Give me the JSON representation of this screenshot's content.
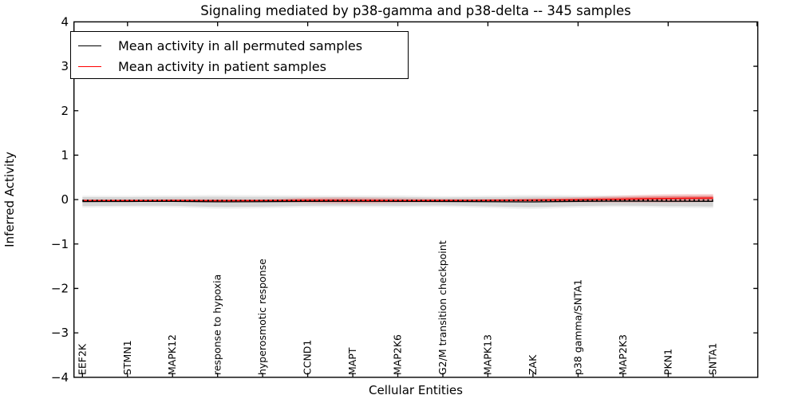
{
  "figure": {
    "background": "#ffffff"
  },
  "chart_data": {
    "type": "line",
    "title": "Signaling mediated by p38-gamma and p38-delta -- 345 samples",
    "xlabel": "Cellular Entities",
    "ylabel": "Inferred Activity",
    "ylim": [
      -4,
      4
    ],
    "ytick_values": [
      4,
      3,
      2,
      1,
      0,
      -1,
      -2,
      -3,
      -4
    ],
    "ytick_labels": [
      "4",
      "3",
      "2",
      "1",
      "0",
      "−1",
      "−2",
      "−3",
      "−4"
    ],
    "grid": false,
    "legend_position": "upper-left",
    "categories": [
      "EEF2K",
      "STMN1",
      "MAPK12",
      "response to hypoxia",
      "hyperosmotic response",
      "CCND1",
      "MAPT",
      "MAP2K6",
      "G2/M transition checkpoint",
      "MAPK13",
      "ZAK",
      "p38 gamma/SNTA1",
      "MAP2K3",
      "PKN1",
      "SNTA1"
    ],
    "series": [
      {
        "name": "Mean activity in all permuted samples",
        "color": "#000000",
        "line_style": "solid",
        "values": [
          -0.045,
          -0.042,
          -0.04,
          -0.05,
          -0.048,
          -0.04,
          -0.038,
          -0.04,
          -0.042,
          -0.048,
          -0.052,
          -0.04,
          -0.035,
          -0.038,
          -0.04
        ]
      },
      {
        "name": "Mean activity in patient samples",
        "color": "#ff0000",
        "line_style": "solid",
        "values": [
          -0.02,
          -0.022,
          -0.02,
          -0.025,
          -0.022,
          -0.018,
          -0.02,
          -0.022,
          -0.02,
          -0.018,
          -0.012,
          -0.005,
          0.01,
          0.025,
          0.035
        ]
      },
      {
        "name": "Permuted samples dotted trace",
        "color": "#000000",
        "line_style": "dotted",
        "values": [
          -0.02,
          -0.02,
          -0.02,
          -0.022,
          -0.02,
          -0.02,
          -0.02,
          -0.02,
          -0.02,
          -0.02,
          -0.018,
          -0.015,
          -0.012,
          -0.01,
          -0.01
        ]
      }
    ],
    "bands": [
      {
        "name": "Permuted samples activity spread",
        "color": "#000000",
        "center_series": 0,
        "half_widths": [
          0.1,
          0.098,
          0.1,
          0.115,
          0.11,
          0.1,
          0.098,
          0.1,
          0.092,
          0.105,
          0.118,
          0.105,
          0.1,
          0.11,
          0.115
        ]
      },
      {
        "name": "Patient samples activity spread",
        "color": "#ff0000",
        "center_series": 1,
        "half_widths": [
          0.025,
          0.025,
          0.03,
          0.035,
          0.03,
          0.06,
          0.07,
          0.055,
          0.04,
          0.035,
          0.045,
          0.06,
          0.08,
          0.095,
          0.09
        ]
      }
    ],
    "legend": {
      "entries": [
        {
          "label": "Mean activity in all permuted samples",
          "color": "#000000"
        },
        {
          "label": "Mean activity in patient samples",
          "color": "#ff0000"
        }
      ]
    }
  }
}
